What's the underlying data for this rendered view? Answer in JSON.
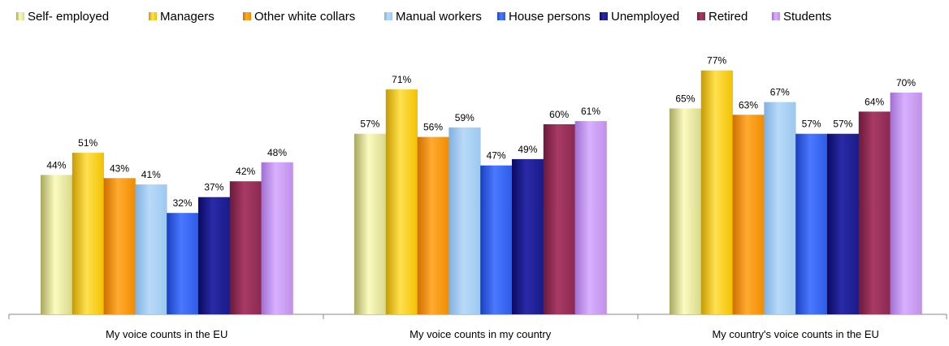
{
  "chart_data": {
    "type": "bar",
    "title": "",
    "xlabel": "",
    "ylabel": "",
    "ylim": [
      0,
      85
    ],
    "grid": false,
    "legend_position": "top",
    "value_suffix": "%",
    "categories": [
      "My voice counts in the EU",
      "My voice counts in my country",
      "My country's voice counts in the EU"
    ],
    "series": [
      {
        "name": "Self- employed",
        "values": [
          44,
          57,
          65
        ],
        "color": "#d8d88a",
        "light": "#fbfbc0",
        "dark": "#a8a860"
      },
      {
        "name": "Managers",
        "values": [
          51,
          71,
          77
        ],
        "color": "#f2c200",
        "light": "#ffe150",
        "dark": "#c89a00"
      },
      {
        "name": "Other white collars",
        "values": [
          43,
          56,
          63
        ],
        "color": "#f08c00",
        "light": "#ffaa30",
        "dark": "#d06e00"
      },
      {
        "name": "Manual workers",
        "values": [
          41,
          59,
          67
        ],
        "color": "#9cc8f0",
        "light": "#b8daf8",
        "dark": "#80b0e0"
      },
      {
        "name": "House persons",
        "values": [
          32,
          47,
          57
        ],
        "color": "#2c5be8",
        "light": "#4a78ff",
        "dark": "#1a40c0"
      },
      {
        "name": "Unemployed",
        "values": [
          37,
          49,
          57
        ],
        "color": "#1a1a88",
        "light": "#2a2aa8",
        "dark": "#0a0a60"
      },
      {
        "name": "Retired",
        "values": [
          42,
          60,
          64
        ],
        "color": "#8a2a50",
        "light": "#a83a64",
        "dark": "#6a1a3a"
      },
      {
        "name": "Students",
        "values": [
          48,
          61,
          70
        ],
        "color": "#c090e8",
        "light": "#d8b0ff",
        "dark": "#a070d0"
      }
    ]
  }
}
